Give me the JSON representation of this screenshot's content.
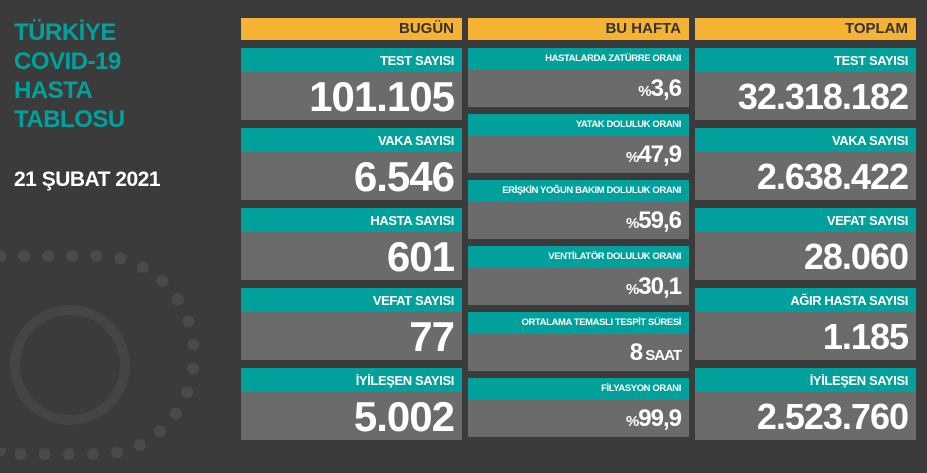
{
  "title": [
    "TÜRKİYE",
    "COVID-19",
    "HASTA",
    "TABLOSU"
  ],
  "date": "21 ŞUBAT 2021",
  "colors": {
    "background": "#3b3b3b",
    "header": "#f6b233",
    "label": "#00a19c",
    "value": "#6b6b6b",
    "title": "#00a19c"
  },
  "today": {
    "header": "BUGÜN",
    "items": [
      {
        "label": "TEST SAYISI",
        "value": "101.105"
      },
      {
        "label": "VAKA SAYISI",
        "value": "6.546"
      },
      {
        "label": "HASTA SAYISI",
        "value": "601"
      },
      {
        "label": "VEFAT SAYISI",
        "value": "77"
      },
      {
        "label": "İYİLEŞEN SAYISI",
        "value": "5.002"
      }
    ]
  },
  "week": {
    "header": "BU HAFTA",
    "items": [
      {
        "label": "HASTALARDA ZATÜRRE ORANI",
        "prefix": "%",
        "value": "3,6",
        "suffix": ""
      },
      {
        "label": "YATAK DOLULUK ORANI",
        "prefix": "%",
        "value": "47,9",
        "suffix": ""
      },
      {
        "label": "ERİŞKİN YOĞUN BAKIM DOLULUK ORANI",
        "prefix": "%",
        "value": "59,6",
        "suffix": ""
      },
      {
        "label": "VENTİLATÖR DOLULUK ORANI",
        "prefix": "%",
        "value": "30,1",
        "suffix": ""
      },
      {
        "label": "ORTALAMA TEMASLI TESPİT SÜRESİ",
        "prefix": "",
        "value": "8",
        "suffix": " SAAT"
      },
      {
        "label": "FİLYASYON ORANI",
        "prefix": "%",
        "value": "99,9",
        "suffix": ""
      }
    ]
  },
  "total": {
    "header": "TOPLAM",
    "items": [
      {
        "label": "TEST SAYISI",
        "value": "32.318.182"
      },
      {
        "label": "VAKA SAYISI",
        "value": "2.638.422"
      },
      {
        "label": "VEFAT SAYISI",
        "value": "28.060"
      },
      {
        "label": "AĞIR HASTA SAYISI",
        "value": "1.185"
      },
      {
        "label": "İYİLEŞEN SAYISI",
        "value": "2.523.760"
      }
    ]
  }
}
